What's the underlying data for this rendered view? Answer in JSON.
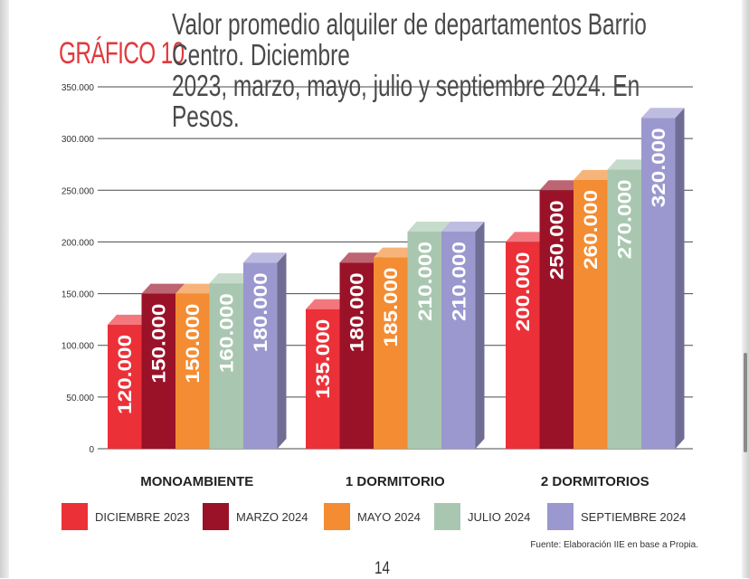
{
  "header": {
    "figure_label": "GRÁFICO 10",
    "title_line1": "Valor promedio alquiler de departamentos Barrio Centro. Diciembre",
    "title_line2": "2023, marzo, mayo, julio y septiembre 2024. En Pesos."
  },
  "chart_data": {
    "type": "bar",
    "title": "Valor promedio alquiler de departamentos Barrio Centro. Diciembre 2023, marzo, mayo, julio y septiembre 2024. En Pesos.",
    "categories": [
      "MONOAMBIENTE",
      "1 DORMITORIO",
      "2 DORMITORIOS"
    ],
    "series": [
      {
        "name": "DICIEMBRE 2023",
        "color": "#ec3038",
        "values": [
          120000,
          135000,
          200000
        ],
        "labels": [
          "120.000",
          "135.000",
          "200.000"
        ]
      },
      {
        "name": "MARZO 2024",
        "color": "#9a1228",
        "values": [
          150000,
          180000,
          250000
        ],
        "labels": [
          "150.000",
          "180.000",
          "250.000"
        ]
      },
      {
        "name": "MAYO 2024",
        "color": "#f38c32",
        "values": [
          150000,
          185000,
          260000
        ],
        "labels": [
          "150.000",
          "185.000",
          "260.000"
        ]
      },
      {
        "name": "JULIO 2024",
        "color": "#a9c7b0",
        "values": [
          160000,
          210000,
          270000
        ],
        "labels": [
          "160.000",
          "210.000",
          "270.000"
        ]
      },
      {
        "name": "SEPTIEMBRE 2024",
        "color": "#9b98cf",
        "values": [
          180000,
          210000,
          320000
        ],
        "labels": [
          "180.000",
          "210.000",
          "320.000"
        ]
      }
    ],
    "yticks": [
      0,
      50000,
      100000,
      150000,
      200000,
      250000,
      300000,
      350000
    ],
    "ytick_labels": [
      "0",
      "50.000",
      "100.000",
      "150.000",
      "200.000",
      "250.000",
      "300.000",
      "350.000"
    ],
    "ylim": [
      0,
      350000
    ],
    "grid": true,
    "legend_position": "bottom",
    "xlabel": "",
    "ylabel": ""
  },
  "legend": [
    {
      "label": "DICIEMBRE 2023",
      "color": "#ec3038"
    },
    {
      "label": "MARZO 2024",
      "color": "#9a1228"
    },
    {
      "label": "MAYO 2024",
      "color": "#f38c32"
    },
    {
      "label": "JULIO 2024",
      "color": "#a9c7b0"
    },
    {
      "label": "SEPTIEMBRE 2024",
      "color": "#9b98cf"
    }
  ],
  "footer": {
    "source": "Fuente: Elaboración IIE en base a Propia.",
    "page_number": "14"
  }
}
